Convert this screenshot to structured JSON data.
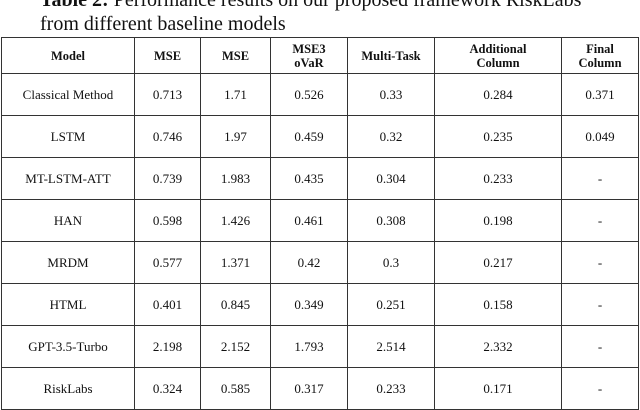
{
  "caption": {
    "label": "Table 2:",
    "text": "Performance results on our proposed framework RiskLabs from different baseline models"
  },
  "table": {
    "header": [
      "Model",
      "MSE",
      "MSE",
      "MSE3\noVaR",
      "Multi-Task",
      "Additional\nColumn",
      "Final\nColumn"
    ],
    "rows": [
      [
        "Classical Method",
        "0.713",
        "1.71",
        "0.526",
        "0.33",
        "0.284",
        "0.371"
      ],
      [
        "LSTM",
        "0.746",
        "1.97",
        "0.459",
        "0.32",
        "0.235",
        "0.049"
      ],
      [
        "MT-LSTM-ATT",
        "0.739",
        "1.983",
        "0.435",
        "0.304",
        "0.233",
        "-"
      ],
      [
        "HAN",
        "0.598",
        "1.426",
        "0.461",
        "0.308",
        "0.198",
        "-"
      ],
      [
        "MRDM",
        "0.577",
        "1.371",
        "0.42",
        "0.3",
        "0.217",
        "-"
      ],
      [
        "HTML",
        "0.401",
        "0.845",
        "0.349",
        "0.251",
        "0.158",
        "-"
      ],
      [
        "GPT-3.5-Turbo",
        "2.198",
        "2.152",
        "1.793",
        "2.514",
        "2.332",
        "-"
      ],
      [
        "RiskLabs",
        "0.324",
        "0.585",
        "0.317",
        "0.233",
        "0.171",
        "-"
      ]
    ]
  }
}
